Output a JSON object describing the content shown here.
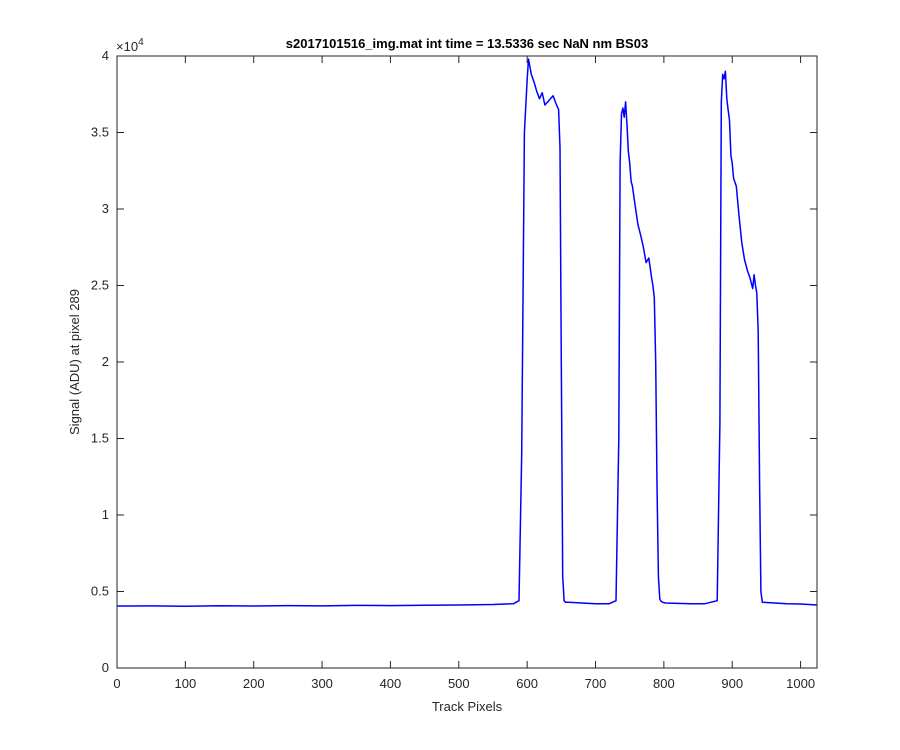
{
  "chart_data": {
    "type": "line",
    "title": "s2017101516_img.mat int time = 13.5336 sec  NaN nm BS03",
    "xlabel": "Track Pixels",
    "ylabel": "Signal (ADU) at pixel 289",
    "xlim": [
      0,
      1024
    ],
    "ylim": [
      0,
      40000
    ],
    "y_exponent_label": "×10",
    "y_exponent_power": "4",
    "x_ticks": [
      0,
      100,
      200,
      300,
      400,
      500,
      600,
      700,
      800,
      900,
      1000
    ],
    "x_tick_labels": [
      "0",
      "100",
      "200",
      "300",
      "400",
      "500",
      "600",
      "700",
      "800",
      "900",
      "1000"
    ],
    "y_ticks": [
      0,
      5000,
      10000,
      15000,
      20000,
      25000,
      30000,
      35000,
      40000
    ],
    "y_tick_labels": [
      "0",
      "0.5",
      "1",
      "1.5",
      "2",
      "2.5",
      "3",
      "3.5",
      "4"
    ],
    "grid": false,
    "series": [
      {
        "color": "#0000ff",
        "x": [
          0,
          50,
          100,
          150,
          200,
          250,
          300,
          350,
          400,
          450,
          500,
          550,
          580,
          588,
          592,
          596,
          600,
          602,
          606,
          610,
          614,
          618,
          622,
          626,
          630,
          634,
          638,
          642,
          646,
          648,
          650,
          652,
          654,
          656,
          660,
          680,
          700,
          720,
          730,
          734,
          736,
          738,
          740,
          742,
          744,
          746,
          748,
          750,
          752,
          754,
          758,
          762,
          766,
          770,
          774,
          778,
          782,
          784,
          786,
          788,
          790,
          792,
          794,
          796,
          798,
          802,
          820,
          840,
          860,
          878,
          882,
          884,
          886,
          888,
          890,
          892,
          894,
          896,
          898,
          900,
          902,
          906,
          910,
          914,
          918,
          922,
          926,
          930,
          932,
          934,
          936,
          938,
          940,
          942,
          944,
          950,
          980,
          1000,
          1024
        ],
        "y": [
          4050,
          4060,
          4040,
          4070,
          4050,
          4080,
          4060,
          4090,
          4080,
          4100,
          4120,
          4150,
          4200,
          4400,
          14000,
          35000,
          38500,
          39800,
          38800,
          38300,
          37700,
          37200,
          37600,
          36800,
          37000,
          37200,
          37400,
          36900,
          36500,
          34000,
          20000,
          6000,
          4400,
          4300,
          4300,
          4250,
          4200,
          4200,
          4400,
          15000,
          33000,
          36200,
          36600,
          36000,
          37000,
          35500,
          33800,
          33000,
          31800,
          31500,
          30200,
          29000,
          28300,
          27500,
          26500,
          26800,
          25500,
          25000,
          24200,
          20000,
          12000,
          6000,
          4500,
          4350,
          4300,
          4250,
          4220,
          4200,
          4200,
          4400,
          16000,
          37000,
          38800,
          38500,
          39000,
          37200,
          36500,
          35800,
          33500,
          33000,
          32000,
          31500,
          29500,
          27800,
          26700,
          26000,
          25500,
          24800,
          25700,
          25000,
          24500,
          22000,
          12000,
          5000,
          4300,
          4280,
          4200,
          4180,
          4120
        ]
      }
    ]
  }
}
